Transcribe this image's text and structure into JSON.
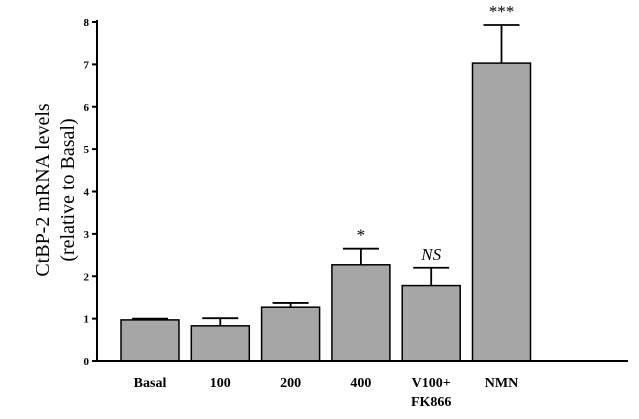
{
  "chart_data": {
    "type": "bar",
    "categories": [
      "Basal",
      "100",
      "200",
      "400",
      "V100+ FK866",
      "NMN"
    ],
    "category_lines": [
      [
        "Basal"
      ],
      [
        "100"
      ],
      [
        "200"
      ],
      [
        "400"
      ],
      [
        "V100+",
        "FK866"
      ],
      [
        "NMN"
      ]
    ],
    "values": [
      0.97,
      0.83,
      1.27,
      2.27,
      1.78,
      7.03
    ],
    "errors": [
      0.03,
      0.18,
      0.1,
      0.38,
      0.42,
      0.9
    ],
    "annotations": [
      "",
      "",
      "",
      "*",
      "NS",
      "***"
    ],
    "annotation_italic": [
      false,
      false,
      false,
      false,
      true,
      false
    ],
    "ylabel_lines": [
      "CtBP-2 mRNA  levels",
      "(relative to Basal)"
    ],
    "yticks": [
      0,
      1,
      2,
      3,
      4,
      5,
      6,
      7,
      8
    ],
    "ylim": [
      0,
      8
    ],
    "bar_color": "#a6a6a6",
    "grid": false
  }
}
